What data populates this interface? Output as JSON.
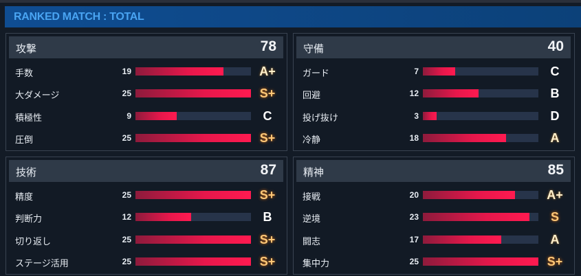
{
  "title": "RANKED MATCH : TOTAL",
  "max_value": 25,
  "panels": [
    {
      "name": "攻撃",
      "total": "78",
      "rows": [
        {
          "label": "手数",
          "value": 19,
          "grade": "A+"
        },
        {
          "label": "大ダメージ",
          "value": 25,
          "grade": "S+"
        },
        {
          "label": "積極性",
          "value": 9,
          "grade": "C"
        },
        {
          "label": "圧倒",
          "value": 25,
          "grade": "S+"
        }
      ]
    },
    {
      "name": "守備",
      "total": "40",
      "rows": [
        {
          "label": "ガード",
          "value": 7,
          "grade": "C"
        },
        {
          "label": "回避",
          "value": 12,
          "grade": "B"
        },
        {
          "label": "投げ抜け",
          "value": 3,
          "grade": "D"
        },
        {
          "label": "冷静",
          "value": 18,
          "grade": "A"
        }
      ]
    },
    {
      "name": "技術",
      "total": "87",
      "rows": [
        {
          "label": "精度",
          "value": 25,
          "grade": "S+"
        },
        {
          "label": "判断力",
          "value": 12,
          "grade": "B"
        },
        {
          "label": "切り返し",
          "value": 25,
          "grade": "S+"
        },
        {
          "label": "ステージ活用",
          "value": 25,
          "grade": "S+"
        }
      ]
    },
    {
      "name": "精神",
      "total": "85",
      "rows": [
        {
          "label": "接戦",
          "value": 20,
          "grade": "A+"
        },
        {
          "label": "逆境",
          "value": 23,
          "grade": "S"
        },
        {
          "label": "闘志",
          "value": 17,
          "grade": "A"
        },
        {
          "label": "集中力",
          "value": 25,
          "grade": "S+"
        }
      ]
    }
  ]
}
